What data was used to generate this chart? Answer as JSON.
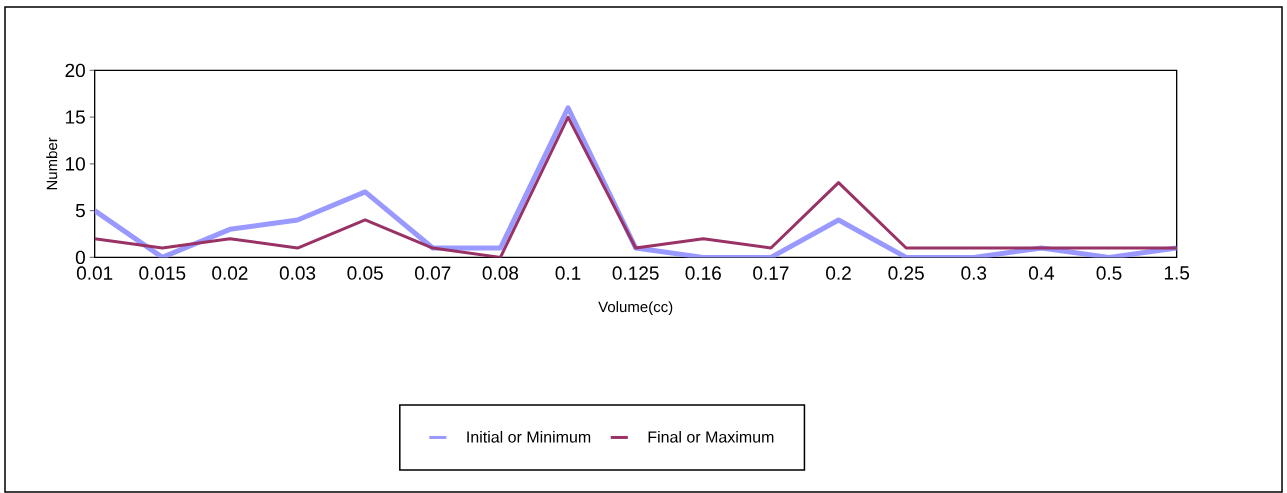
{
  "chart_data": {
    "type": "line",
    "xlabel": "Volume(cc)",
    "ylabel": "Number",
    "categories": [
      "0.01",
      "0.015",
      "0.02",
      "0.03",
      "0.05",
      "0.07",
      "0.08",
      "0.1",
      "0.125",
      "0.16",
      "0.17",
      "0.2",
      "0.25",
      "0.3",
      "0.4",
      "0.5",
      "1.5"
    ],
    "series": [
      {
        "name": "Initial or Minimum",
        "color": "#9999ff",
        "values": [
          5,
          0,
          3,
          4,
          7,
          1,
          1,
          16,
          1,
          0,
          0,
          4,
          0,
          0,
          1,
          0,
          1
        ]
      },
      {
        "name": "Final or Maximum",
        "color": "#993366",
        "values": [
          2,
          1,
          2,
          1,
          4,
          1,
          0,
          15,
          1,
          2,
          1,
          8,
          1,
          1,
          1,
          1,
          1
        ]
      }
    ],
    "ylim": [
      0,
      20
    ],
    "yticks": [
      0,
      5,
      10,
      15,
      20
    ],
    "legend": "bottom",
    "marker": "none",
    "line_style": "solid",
    "grid": false
  }
}
